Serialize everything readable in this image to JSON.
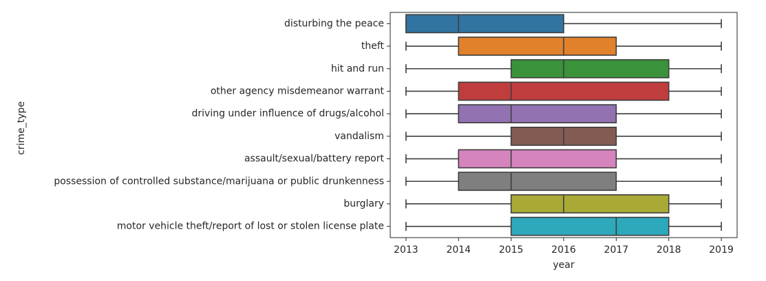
{
  "chart_data": {
    "type": "box",
    "orientation": "horizontal",
    "xlabel": "year",
    "ylabel": "crime_type",
    "xlim": [
      2012.7,
      2019.3
    ],
    "xticks": [
      2013,
      2014,
      2015,
      2016,
      2017,
      2018,
      2019
    ],
    "grid": false,
    "categories": [
      "disturbing the peace",
      "theft",
      "hit and run",
      "other agency misdemeanor warrant",
      "driving under influence of drugs/alcohol",
      "vandalism",
      "assault/sexual/battery report",
      "possession of controlled substance/marijuana or public drunkenness",
      "burglary",
      "motor vehicle theft/report of lost or stolen license plate"
    ],
    "boxes": [
      {
        "min": 2013,
        "q1": 2013,
        "median": 2014,
        "q3": 2016,
        "max": 2019,
        "color": "#3274a1"
      },
      {
        "min": 2013,
        "q1": 2014,
        "median": 2016,
        "q3": 2017,
        "max": 2019,
        "color": "#e1812c"
      },
      {
        "min": 2013,
        "q1": 2015,
        "median": 2016,
        "q3": 2018,
        "max": 2019,
        "color": "#3a923a"
      },
      {
        "min": 2013,
        "q1": 2014,
        "median": 2015,
        "q3": 2018,
        "max": 2019,
        "color": "#c03d3e"
      },
      {
        "min": 2013,
        "q1": 2014,
        "median": 2015,
        "q3": 2017,
        "max": 2019,
        "color": "#9372b2"
      },
      {
        "min": 2013,
        "q1": 2015,
        "median": 2016,
        "q3": 2017,
        "max": 2019,
        "color": "#845b53"
      },
      {
        "min": 2013,
        "q1": 2014,
        "median": 2015,
        "q3": 2017,
        "max": 2019,
        "color": "#d684bd"
      },
      {
        "min": 2013,
        "q1": 2014,
        "median": 2015,
        "q3": 2017,
        "max": 2019,
        "color": "#7f7f7f"
      },
      {
        "min": 2013,
        "q1": 2015,
        "median": 2016,
        "q3": 2018,
        "max": 2019,
        "color": "#a9aa35"
      },
      {
        "min": 2013,
        "q1": 2015,
        "median": 2017,
        "q3": 2018,
        "max": 2019,
        "color": "#2ea8bb"
      }
    ]
  }
}
